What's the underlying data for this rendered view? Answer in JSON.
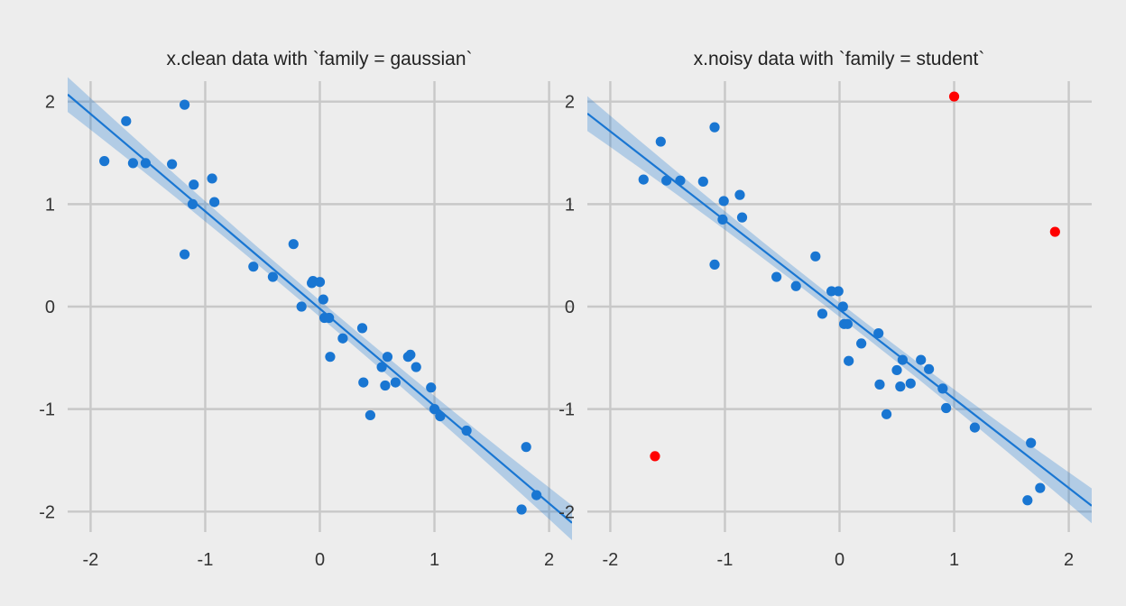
{
  "chart_data": [
    {
      "type": "scatter",
      "title": "x.clean data with `family = gaussian`",
      "xlabel": "",
      "ylabel": "",
      "xlim": [
        -2.2,
        2.2
      ],
      "ylim": [
        -2.2,
        2.2
      ],
      "x_ticks": [
        -2,
        -1,
        0,
        1,
        2
      ],
      "y_ticks": [
        -2,
        -1,
        0,
        1,
        2
      ],
      "x_tick_labels": [
        "-2",
        "-1",
        "0",
        "1",
        "2"
      ],
      "y_tick_labels": [
        "-2",
        "-1",
        "0",
        "1",
        "2"
      ],
      "grid": true,
      "point_color": "#1976d2",
      "fit": {
        "intercept": -0.02,
        "slope": -0.95,
        "band_halfwidth_center": 0.08,
        "band_halfwidth_edge": 0.17,
        "color": "#1976d2",
        "band_color": "#1976d2"
      },
      "points": [
        {
          "x": -1.88,
          "y": 1.42
        },
        {
          "x": -1.69,
          "y": 1.81
        },
        {
          "x": -1.63,
          "y": 1.4
        },
        {
          "x": -1.52,
          "y": 1.4
        },
        {
          "x": -1.29,
          "y": 1.39
        },
        {
          "x": -1.18,
          "y": 1.97
        },
        {
          "x": -1.18,
          "y": 0.51
        },
        {
          "x": -1.1,
          "y": 1.19
        },
        {
          "x": -1.11,
          "y": 1.0
        },
        {
          "x": -0.94,
          "y": 1.25
        },
        {
          "x": -0.92,
          "y": 1.02
        },
        {
          "x": -0.58,
          "y": 0.39
        },
        {
          "x": -0.41,
          "y": 0.29
        },
        {
          "x": -0.23,
          "y": 0.61
        },
        {
          "x": -0.16,
          "y": 0.0
        },
        {
          "x": -0.07,
          "y": 0.23
        },
        {
          "x": -0.06,
          "y": 0.25
        },
        {
          "x": 0.0,
          "y": 0.24
        },
        {
          "x": 0.03,
          "y": 0.07
        },
        {
          "x": 0.04,
          "y": -0.11
        },
        {
          "x": 0.08,
          "y": -0.11
        },
        {
          "x": 0.09,
          "y": -0.49
        },
        {
          "x": 0.2,
          "y": -0.31
        },
        {
          "x": 0.37,
          "y": -0.21
        },
        {
          "x": 0.38,
          "y": -0.74
        },
        {
          "x": 0.44,
          "y": -1.06
        },
        {
          "x": 0.54,
          "y": -0.59
        },
        {
          "x": 0.57,
          "y": -0.77
        },
        {
          "x": 0.59,
          "y": -0.49
        },
        {
          "x": 0.66,
          "y": -0.74
        },
        {
          "x": 0.77,
          "y": -0.49
        },
        {
          "x": 0.79,
          "y": -0.47
        },
        {
          "x": 0.84,
          "y": -0.59
        },
        {
          "x": 0.97,
          "y": -0.79
        },
        {
          "x": 1.0,
          "y": -1.0
        },
        {
          "x": 1.05,
          "y": -1.07
        },
        {
          "x": 1.28,
          "y": -1.21
        },
        {
          "x": 1.76,
          "y": -1.98
        },
        {
          "x": 1.8,
          "y": -1.37
        },
        {
          "x": 1.89,
          "y": -1.84
        }
      ],
      "outliers": []
    },
    {
      "type": "scatter",
      "title": "x.noisy data with `family = student`",
      "xlabel": "",
      "ylabel": "",
      "xlim": [
        -2.2,
        2.2
      ],
      "ylim": [
        -2.2,
        2.2
      ],
      "x_ticks": [
        -2,
        -1,
        0,
        1,
        2
      ],
      "y_ticks": [
        -2,
        -1,
        0,
        1,
        2
      ],
      "x_tick_labels": [
        "-2",
        "-1",
        "0",
        "1",
        "2"
      ],
      "y_tick_labels": [
        "-2",
        "-1",
        "0",
        "1",
        "2"
      ],
      "grid": true,
      "point_color": "#1976d2",
      "outlier_color": "#ff0000",
      "fit": {
        "intercept": -0.03,
        "slope": -0.87,
        "band_halfwidth_center": 0.07,
        "band_halfwidth_edge": 0.17,
        "color": "#1976d2",
        "band_color": "#1976d2"
      },
      "points": [
        {
          "x": -1.71,
          "y": 1.24
        },
        {
          "x": -1.56,
          "y": 1.61
        },
        {
          "x": -1.51,
          "y": 1.23
        },
        {
          "x": -1.39,
          "y": 1.23
        },
        {
          "x": -1.19,
          "y": 1.22
        },
        {
          "x": -1.09,
          "y": 1.75
        },
        {
          "x": -1.09,
          "y": 0.41
        },
        {
          "x": -1.01,
          "y": 1.03
        },
        {
          "x": -1.02,
          "y": 0.85
        },
        {
          "x": -0.87,
          "y": 1.09
        },
        {
          "x": -0.85,
          "y": 0.87
        },
        {
          "x": -0.55,
          "y": 0.29
        },
        {
          "x": -0.38,
          "y": 0.2
        },
        {
          "x": -0.21,
          "y": 0.49
        },
        {
          "x": -0.15,
          "y": -0.07
        },
        {
          "x": -0.07,
          "y": 0.15
        },
        {
          "x": -0.01,
          "y": 0.15
        },
        {
          "x": 0.03,
          "y": 0.0
        },
        {
          "x": 0.04,
          "y": -0.17
        },
        {
          "x": 0.07,
          "y": -0.17
        },
        {
          "x": 0.08,
          "y": -0.53
        },
        {
          "x": 0.19,
          "y": -0.36
        },
        {
          "x": 0.34,
          "y": -0.26
        },
        {
          "x": 0.35,
          "y": -0.76
        },
        {
          "x": 0.41,
          "y": -1.05
        },
        {
          "x": 0.5,
          "y": -0.62
        },
        {
          "x": 0.53,
          "y": -0.78
        },
        {
          "x": 0.55,
          "y": -0.52
        },
        {
          "x": 0.62,
          "y": -0.75
        },
        {
          "x": 0.71,
          "y": -0.52
        },
        {
          "x": 0.78,
          "y": -0.61
        },
        {
          "x": 0.9,
          "y": -0.8
        },
        {
          "x": 0.93,
          "y": -0.99
        },
        {
          "x": 1.18,
          "y": -1.18
        },
        {
          "x": 1.64,
          "y": -1.89
        },
        {
          "x": 1.67,
          "y": -1.33
        },
        {
          "x": 1.75,
          "y": -1.77
        }
      ],
      "outliers": [
        {
          "x": 1.0,
          "y": 2.05
        },
        {
          "x": 1.88,
          "y": 0.73
        },
        {
          "x": -1.61,
          "y": -1.46
        }
      ]
    }
  ]
}
